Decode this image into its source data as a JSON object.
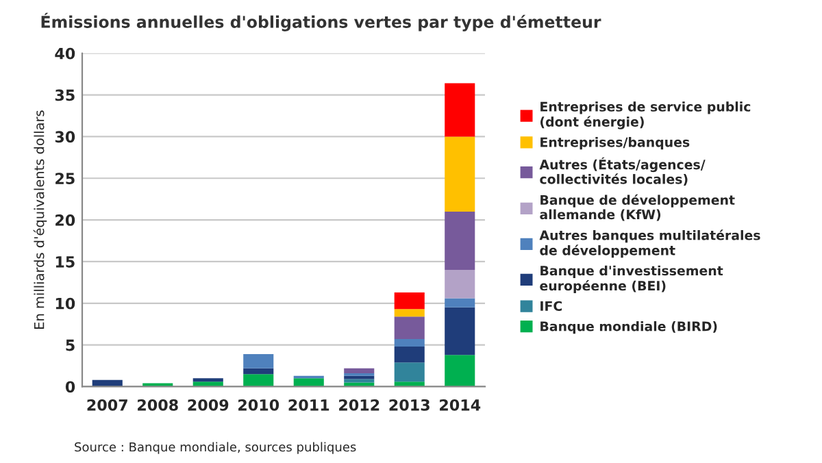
{
  "chart_data": {
    "type": "bar",
    "stacked": true,
    "title": "Émissions annuelles d'obligations vertes par type d'émetteur",
    "ylabel": "En milliards d'équivalents dollars",
    "categories": [
      "2007",
      "2008",
      "2009",
      "2010",
      "2011",
      "2012",
      "2013",
      "2014"
    ],
    "series": [
      {
        "name": "Banque mondiale (BIRD)",
        "color": "#00b050",
        "values": [
          null,
          0.4,
          0.6,
          1.5,
          1.0,
          0.5,
          0.6,
          3.8
        ]
      },
      {
        "name": "IFC",
        "color": "#31849b",
        "values": [
          null,
          null,
          null,
          null,
          null,
          0.4,
          2.3,
          null
        ]
      },
      {
        "name": "Banque d'investissement\neuropéenne (BEI)",
        "color": "#1f3d7a",
        "values": [
          0.8,
          null,
          0.4,
          0.7,
          null,
          0.4,
          1.9,
          5.7
        ]
      },
      {
        "name": "Autres banques multilatérales\nde développement",
        "color": "#4f81bd",
        "values": [
          null,
          null,
          null,
          1.7,
          0.3,
          0.3,
          0.9,
          1.1
        ]
      },
      {
        "name": "Banque de développement\nallemande (KfW)",
        "color": "#b3a2c7",
        "values": [
          null,
          null,
          null,
          null,
          null,
          null,
          null,
          3.4
        ]
      },
      {
        "name": "Autres (États/agences/\ncollectivités locales)",
        "color": "#775a9b",
        "values": [
          null,
          null,
          null,
          null,
          null,
          0.6,
          2.7,
          7.0
        ]
      },
      {
        "name": "Entreprises/banques",
        "color": "#ffc000",
        "values": [
          null,
          null,
          null,
          null,
          null,
          null,
          0.9,
          9.0
        ]
      },
      {
        "name": "Entreprises de service public\n(dont énergie)",
        "color": "#ff0000",
        "values": [
          null,
          null,
          null,
          null,
          null,
          null,
          2.0,
          6.4
        ]
      }
    ],
    "ylim": [
      0,
      40
    ],
    "yticks": [
      0,
      5,
      10,
      15,
      20,
      25,
      30,
      35,
      40
    ],
    "grid": "y",
    "legend": "right",
    "annotations": [
      "Source : Banque mondiale, sources publiques"
    ]
  }
}
